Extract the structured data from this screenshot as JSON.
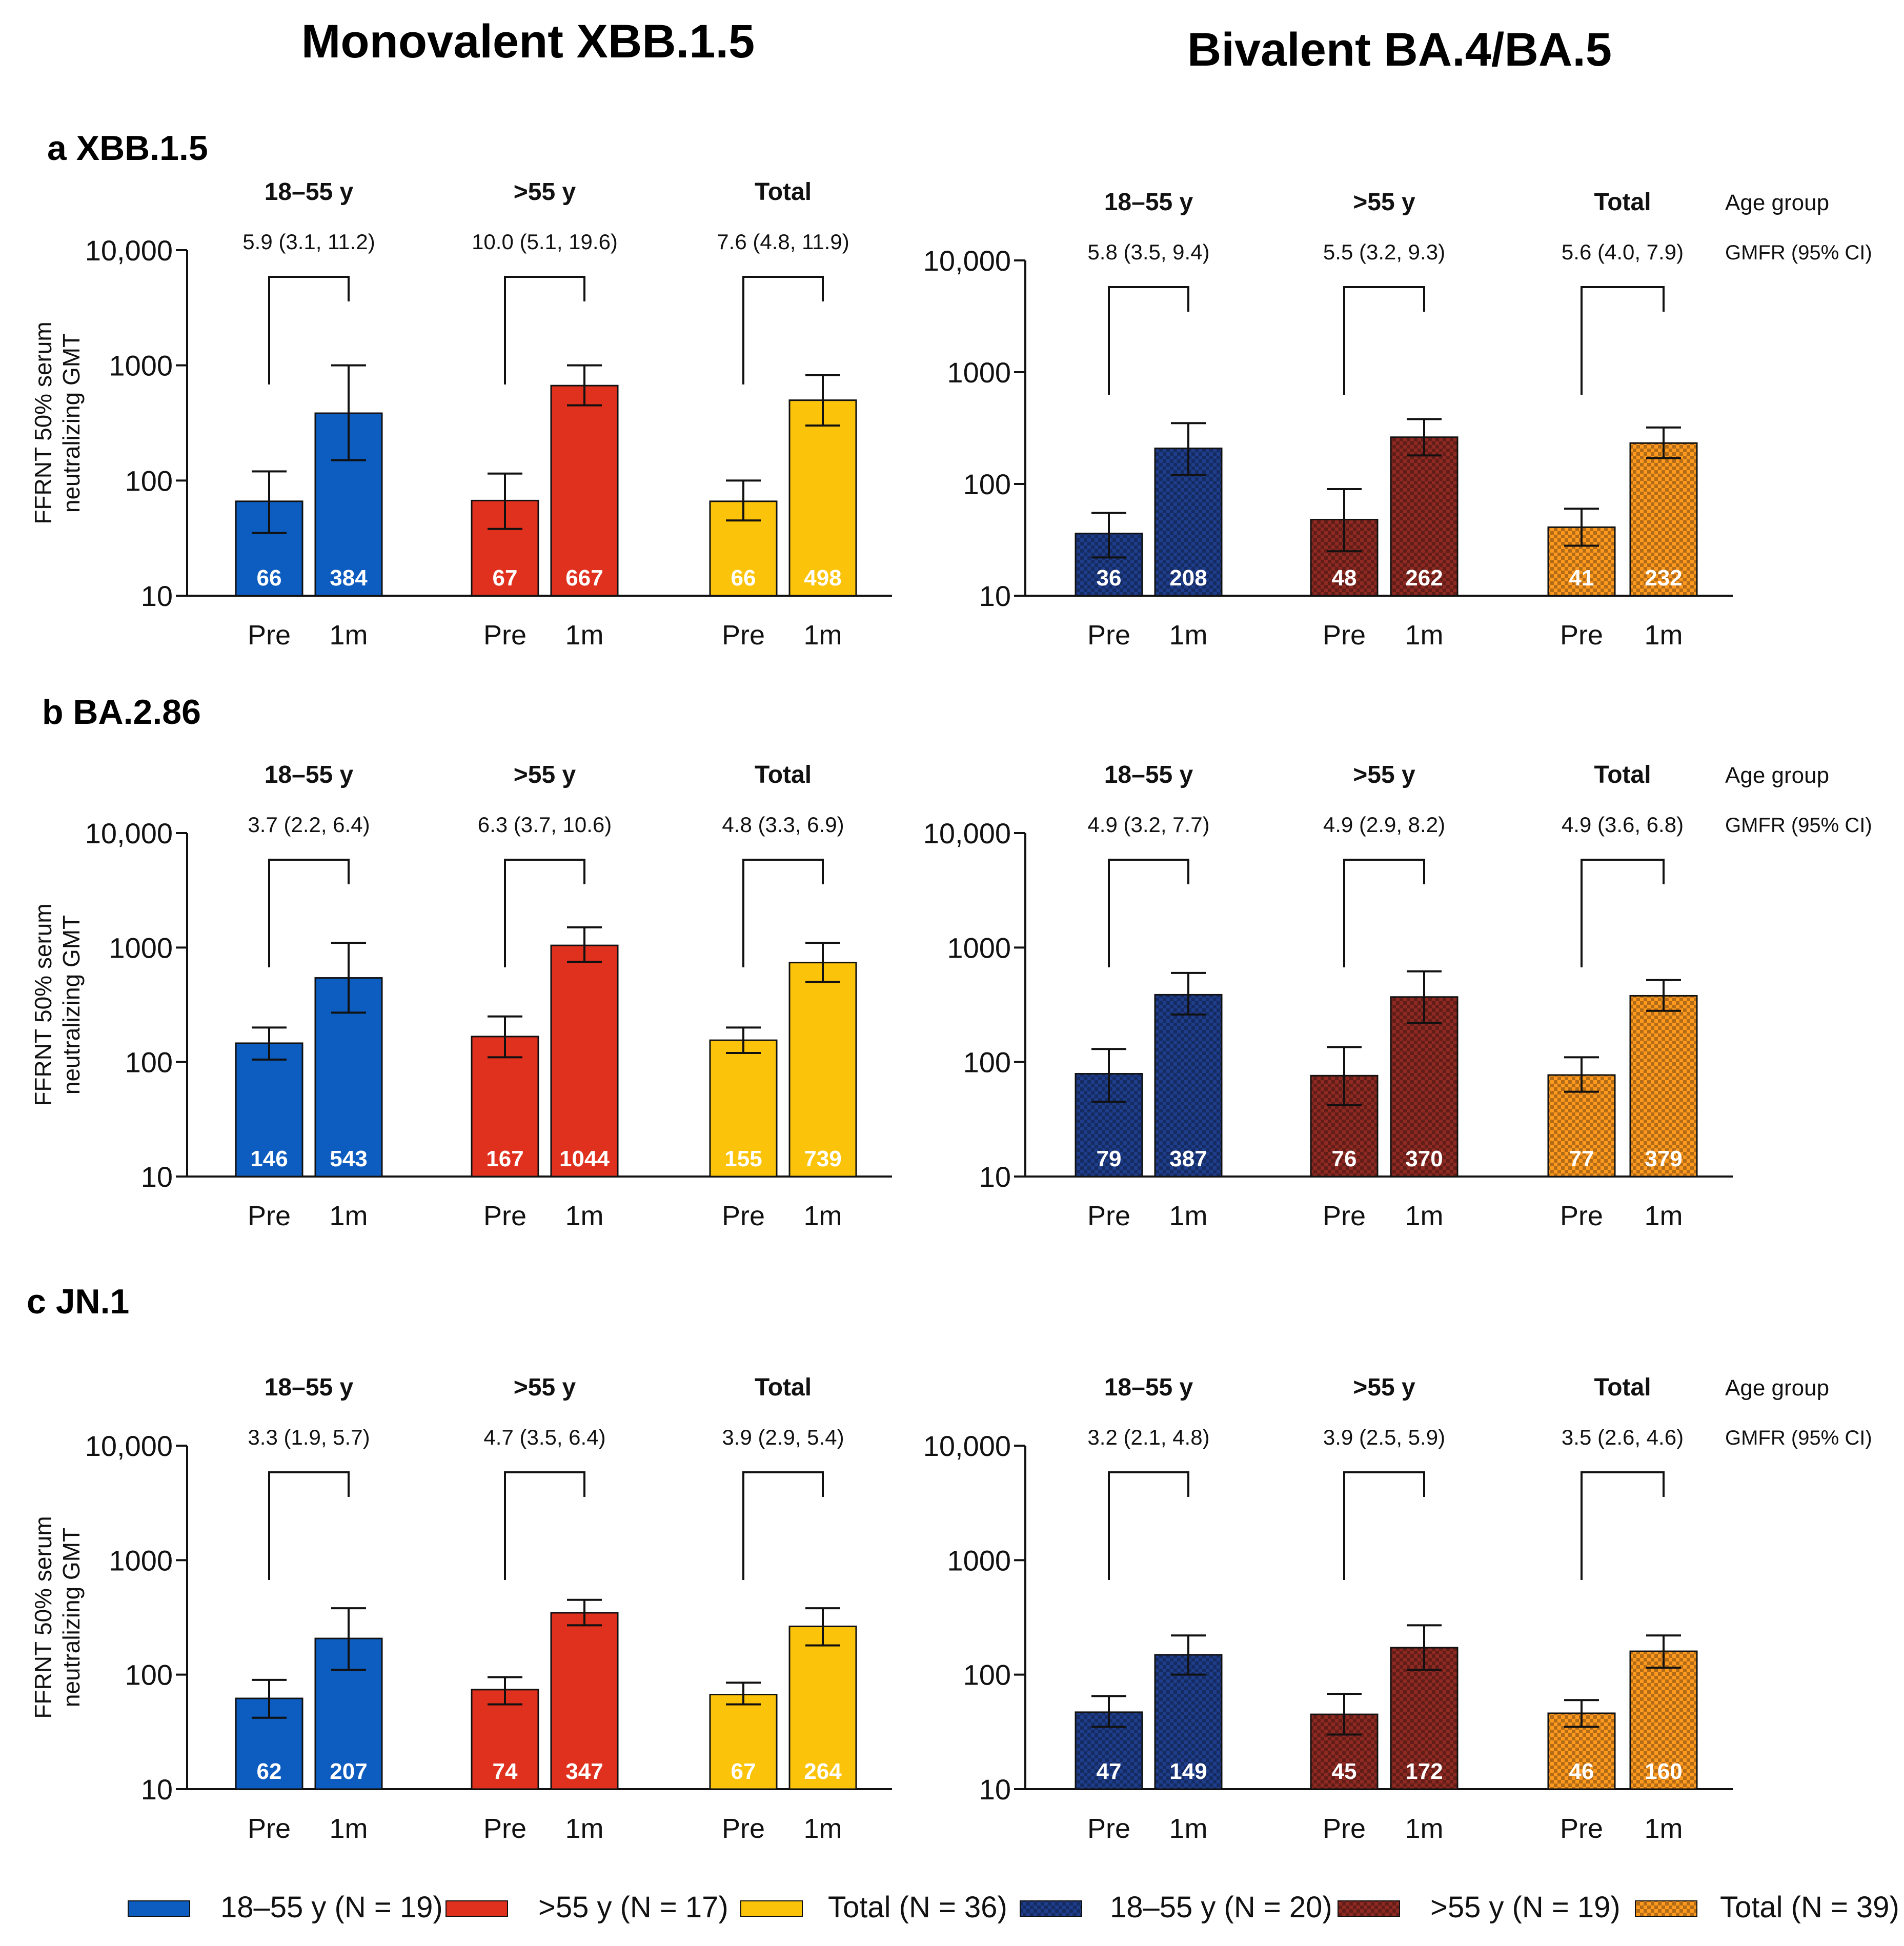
{
  "column_titles": [
    "Monovalent XBB.1.5",
    "Bivalent BA.4/BA.5"
  ],
  "row_labels": [
    "a XBB.1.5",
    "b  BA.2.86",
    "c JN.1"
  ],
  "y_axis_label_line1": "FFRNT 50% serum",
  "y_axis_label_line2": "neutralizing GMT",
  "right_labels": {
    "age_group": "Age group",
    "gmfr": "GMFR (95% CI)"
  },
  "time_labels": [
    "Pre",
    "1m"
  ],
  "colors": {
    "blue": "#0D5CBF",
    "red": "#E0301E",
    "yellow": "#FCC30B",
    "bi_blue": "#1E3E8C",
    "bi_red": "#8E2A22",
    "bi_orange": "#FF9A1F"
  },
  "legend": [
    {
      "label": "18–55 y (N = 19)",
      "color": "#0D5CBF",
      "pattern": false
    },
    {
      "label": ">55 y (N = 17)",
      "color": "#E0301E",
      "pattern": false
    },
    {
      "label": "Total (N = 36)",
      "color": "#FCC30B",
      "pattern": false
    },
    {
      "label": "18–55 y (N = 20)",
      "color": "#1E3E8C",
      "pattern": true
    },
    {
      "label": ">55 y (N = 19)",
      "color": "#8E2A22",
      "pattern": true
    },
    {
      "label": "Total (N = 39)",
      "color": "#FF9A1F",
      "pattern": true
    }
  ],
  "chart_data": [
    {
      "id": "a-mono",
      "type": "bar",
      "yscale": "log",
      "ylim": [
        10,
        10000
      ],
      "yticks": [
        "10",
        "100",
        "1000",
        "10,000"
      ],
      "show_ylabel": true,
      "show_right_labels": false,
      "groups": [
        {
          "name": "18–55 y",
          "gmfr": "5.9 (3.1, 11.2)",
          "color": "blue",
          "pattern": false,
          "pre": {
            "v": 66,
            "lo": 35,
            "hi": 120
          },
          "post": {
            "v": 384,
            "lo": 150,
            "hi": 1000
          }
        },
        {
          "name": ">55 y",
          "gmfr": "10.0 (5.1, 19.6)",
          "color": "red",
          "pattern": false,
          "pre": {
            "v": 67,
            "lo": 38,
            "hi": 115
          },
          "post": {
            "v": 667,
            "lo": 450,
            "hi": 1000
          }
        },
        {
          "name": "Total",
          "gmfr": "7.6 (4.8, 11.9)",
          "color": "yellow",
          "pattern": false,
          "pre": {
            "v": 66,
            "lo": 45,
            "hi": 100
          },
          "post": {
            "v": 498,
            "lo": 300,
            "hi": 820
          }
        }
      ]
    },
    {
      "id": "a-bi",
      "type": "bar",
      "yscale": "log",
      "ylim": [
        10,
        10000
      ],
      "yticks": [
        "10",
        "100",
        "1000",
        "10,000"
      ],
      "show_ylabel": false,
      "show_right_labels": true,
      "groups": [
        {
          "name": "18–55 y",
          "gmfr": "5.8 (3.5, 9.4)",
          "color": "bi_blue",
          "pattern": true,
          "pre": {
            "v": 36,
            "lo": 22,
            "hi": 55
          },
          "post": {
            "v": 208,
            "lo": 120,
            "hi": 350
          }
        },
        {
          "name": ">55 y",
          "gmfr": "5.5 (3.2, 9.3)",
          "color": "bi_red",
          "pattern": true,
          "pre": {
            "v": 48,
            "lo": 25,
            "hi": 90
          },
          "post": {
            "v": 262,
            "lo": 180,
            "hi": 380
          }
        },
        {
          "name": "Total",
          "gmfr": "5.6 (4.0, 7.9)",
          "color": "bi_orange",
          "pattern": true,
          "pre": {
            "v": 41,
            "lo": 28,
            "hi": 60
          },
          "post": {
            "v": 232,
            "lo": 170,
            "hi": 320
          }
        }
      ]
    },
    {
      "id": "b-mono",
      "type": "bar",
      "yscale": "log",
      "ylim": [
        10,
        10000
      ],
      "yticks": [
        "10",
        "100",
        "1000",
        "10,000"
      ],
      "show_ylabel": true,
      "show_right_labels": false,
      "groups": [
        {
          "name": "18–55 y",
          "gmfr": "3.7 (2.2, 6.4)",
          "color": "blue",
          "pattern": false,
          "pre": {
            "v": 146,
            "lo": 105,
            "hi": 200
          },
          "post": {
            "v": 543,
            "lo": 270,
            "hi": 1100
          }
        },
        {
          "name": ">55 y",
          "gmfr": "6.3 (3.7, 10.6)",
          "color": "red",
          "pattern": false,
          "pre": {
            "v": 167,
            "lo": 110,
            "hi": 250
          },
          "post": {
            "v": 1044,
            "lo": 750,
            "hi": 1500
          }
        },
        {
          "name": "Total",
          "gmfr": "4.8 (3.3, 6.9)",
          "color": "yellow",
          "pattern": false,
          "pre": {
            "v": 155,
            "lo": 120,
            "hi": 200
          },
          "post": {
            "v": 739,
            "lo": 500,
            "hi": 1100
          }
        }
      ]
    },
    {
      "id": "b-bi",
      "type": "bar",
      "yscale": "log",
      "ylim": [
        10,
        10000
      ],
      "yticks": [
        "10",
        "100",
        "1000",
        "10,000"
      ],
      "show_ylabel": false,
      "show_right_labels": true,
      "groups": [
        {
          "name": "18–55 y",
          "gmfr": "4.9 (3.2, 7.7)",
          "color": "bi_blue",
          "pattern": true,
          "pre": {
            "v": 79,
            "lo": 45,
            "hi": 130
          },
          "post": {
            "v": 387,
            "lo": 260,
            "hi": 600
          }
        },
        {
          "name": ">55 y",
          "gmfr": "4.9 (2.9, 8.2)",
          "color": "bi_red",
          "pattern": true,
          "pre": {
            "v": 76,
            "lo": 42,
            "hi": 135
          },
          "post": {
            "v": 370,
            "lo": 220,
            "hi": 620
          }
        },
        {
          "name": "Total",
          "gmfr": "4.9 (3.6, 6.8)",
          "color": "bi_orange",
          "pattern": true,
          "pre": {
            "v": 77,
            "lo": 55,
            "hi": 110
          },
          "post": {
            "v": 379,
            "lo": 280,
            "hi": 520
          }
        }
      ]
    },
    {
      "id": "c-mono",
      "type": "bar",
      "yscale": "log",
      "ylim": [
        10,
        10000
      ],
      "yticks": [
        "10",
        "100",
        "1000",
        "10,000"
      ],
      "show_ylabel": true,
      "show_right_labels": false,
      "groups": [
        {
          "name": "18–55 y",
          "gmfr": "3.3 (1.9, 5.7)",
          "color": "blue",
          "pattern": false,
          "pre": {
            "v": 62,
            "lo": 42,
            "hi": 90
          },
          "post": {
            "v": 207,
            "lo": 110,
            "hi": 380
          }
        },
        {
          "name": ">55 y",
          "gmfr": "4.7 (3.5, 6.4)",
          "color": "red",
          "pattern": false,
          "pre": {
            "v": 74,
            "lo": 55,
            "hi": 95
          },
          "post": {
            "v": 347,
            "lo": 270,
            "hi": 450
          }
        },
        {
          "name": "Total",
          "gmfr": "3.9 (2.9, 5.4)",
          "color": "yellow",
          "pattern": false,
          "pre": {
            "v": 67,
            "lo": 55,
            "hi": 85
          },
          "post": {
            "v": 264,
            "lo": 180,
            "hi": 380
          }
        }
      ]
    },
    {
      "id": "c-bi",
      "type": "bar",
      "yscale": "log",
      "ylim": [
        10,
        10000
      ],
      "yticks": [
        "10",
        "100",
        "1000",
        "10,000"
      ],
      "show_ylabel": false,
      "show_right_labels": true,
      "groups": [
        {
          "name": "18–55 y",
          "gmfr": "3.2 (2.1, 4.8)",
          "color": "bi_blue",
          "pattern": true,
          "pre": {
            "v": 47,
            "lo": 35,
            "hi": 65
          },
          "post": {
            "v": 149,
            "lo": 100,
            "hi": 220
          }
        },
        {
          "name": ">55 y",
          "gmfr": "3.9 (2.5, 5.9)",
          "color": "bi_red",
          "pattern": true,
          "pre": {
            "v": 45,
            "lo": 30,
            "hi": 68
          },
          "post": {
            "v": 172,
            "lo": 110,
            "hi": 270
          }
        },
        {
          "name": "Total",
          "gmfr": "3.5 (2.6, 4.6)",
          "color": "bi_orange",
          "pattern": true,
          "pre": {
            "v": 46,
            "lo": 35,
            "hi": 60
          },
          "post": {
            "v": 160,
            "lo": 115,
            "hi": 220
          }
        }
      ]
    }
  ]
}
